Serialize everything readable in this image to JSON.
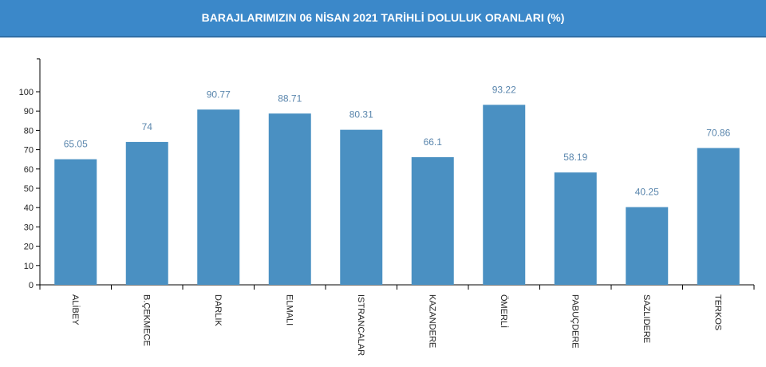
{
  "chart_data": {
    "type": "bar",
    "title": "BARAJLARIMIZIN 06 NİSAN 2021 TARİHLİ DOLULUK ORANLARI (%)",
    "categories": [
      "ALİBEY",
      "B.ÇEKMECE",
      "DARLIK",
      "ELMALI",
      "ISTRANCALAR",
      "KAZANDERE",
      "ÖMERLİ",
      "PABUÇDERE",
      "SAZLIDERE",
      "TERKOS"
    ],
    "values": [
      65.05,
      74,
      90.77,
      88.71,
      80.31,
      66.1,
      93.22,
      58.19,
      40.25,
      70.86
    ],
    "value_labels": [
      "65.05",
      "74",
      "90.77",
      "88.71",
      "80.31",
      "66.1",
      "93.22",
      "58.19",
      "40.25",
      "70.86"
    ],
    "yticks": [
      "0",
      "10",
      "20",
      "30",
      "40",
      "50",
      "60",
      "70",
      "80",
      "90",
      "100"
    ],
    "ylim": [
      0,
      117
    ],
    "xlabel": "",
    "ylabel": "",
    "bar_color": "#4a90c2",
    "label_color": "#5a86ad"
  }
}
